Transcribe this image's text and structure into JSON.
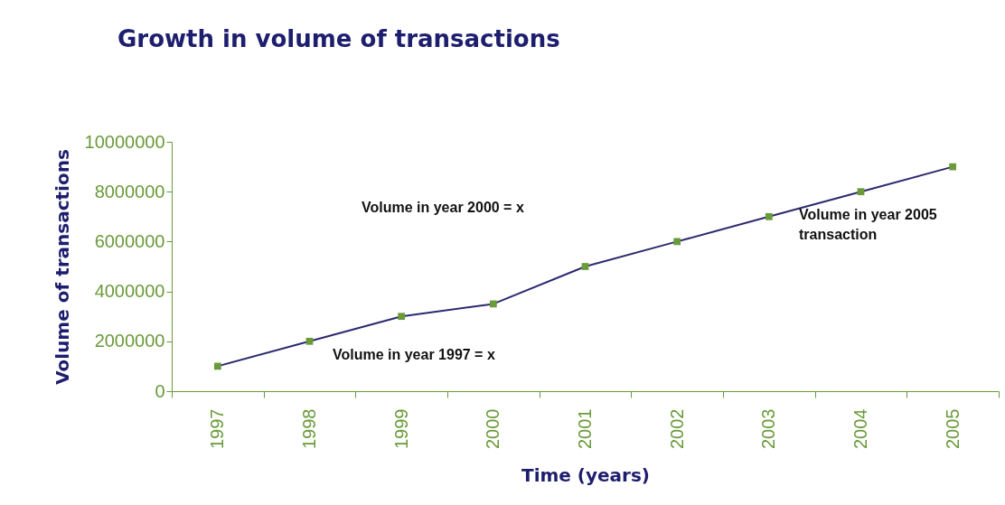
{
  "chart_data": {
    "type": "line",
    "title": "Growth in volume of transactions",
    "xlabel": "Time (years)",
    "ylabel": "Volume of transactions",
    "categories": [
      "1997",
      "1998",
      "1999",
      "2000",
      "2001",
      "2002",
      "2003",
      "2004",
      "2005"
    ],
    "series": [
      {
        "color": "#2b2a6e",
        "values": [
          1000000,
          2000000,
          3000000,
          3500000,
          5000000,
          6000000,
          7000000,
          8000000,
          9000000
        ]
      }
    ],
    "ylim": [
      0,
      10000000
    ],
    "yticks": [
      0,
      2000000,
      4000000,
      6000000,
      8000000,
      10000000
    ],
    "marker": "square",
    "grid": false,
    "legend": false,
    "annotations": [
      "Volume in year 2000 = x",
      "Volume in year 1997 = x",
      "Volume in year 2005\ntransaction"
    ]
  }
}
